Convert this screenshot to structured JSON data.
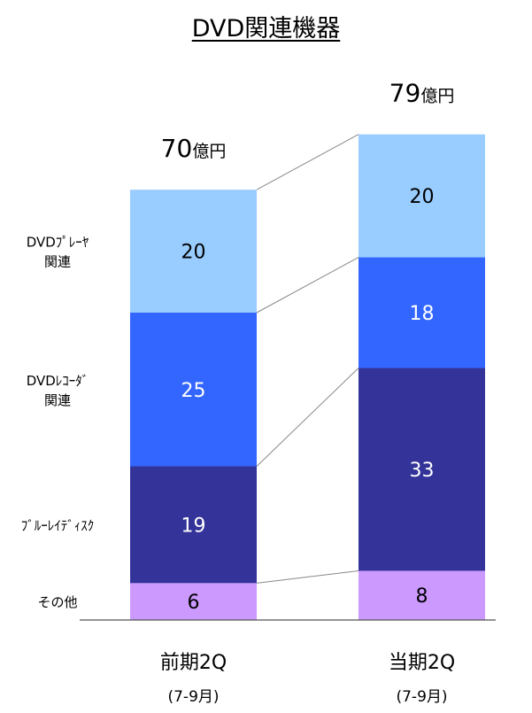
{
  "title": "DVD関連機器",
  "chart_data": {
    "type": "bar",
    "stacked": true,
    "unit": "億円",
    "categories": [
      "前期2Q",
      "当期2Q"
    ],
    "category_sublabels": [
      "(7-9月)",
      "(7-9月)"
    ],
    "totals": [
      70,
      79
    ],
    "series": [
      {
        "name": "その他",
        "values": [
          6,
          8
        ],
        "color": "#cc99ff"
      },
      {
        "name": "ﾌﾞﾙｰﾚｲﾃﾞｨｽｸ",
        "values": [
          19,
          33
        ],
        "color": "#333399"
      },
      {
        "name": "DVDﾚｺｰﾀﾞ関連",
        "values": [
          25,
          18
        ],
        "color": "#3366ff"
      },
      {
        "name": "DVDﾌﾟﾚｰﾔ関連",
        "values": [
          20,
          20
        ],
        "color": "#99ccff"
      }
    ],
    "series_label_lines": [
      [
        "その他"
      ],
      [
        "ﾌﾞﾙｰﾚｲﾃﾞｨｽｸ"
      ],
      [
        "DVDﾚｺｰﾀﾞ",
        "関連"
      ],
      [
        "DVDﾌﾟﾚｰﾔ",
        "関連"
      ]
    ],
    "value_label_colors": [
      "#000000",
      "#ffffff",
      "#ffffff",
      "#000000"
    ],
    "connector_lines": true,
    "legend": "left"
  }
}
